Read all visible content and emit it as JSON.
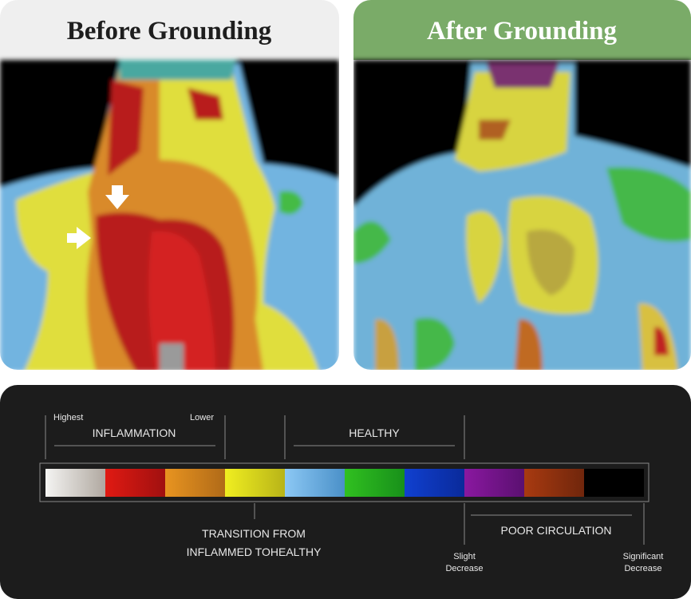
{
  "panels": [
    {
      "title": "Before Grounding"
    },
    {
      "title": "After Grounding"
    }
  ],
  "legend": {
    "highest": "Highest",
    "lower": "Lower",
    "inflammation": "INFLAMMATION",
    "healthy": "HEALTHY",
    "transition": [
      "TRANSITION FROM",
      "INFLAMMED TOHEALTHY"
    ],
    "poor_circulation": "POOR CIRCULATION",
    "slight_decrease": [
      "Slight",
      "Decrease"
    ],
    "significant_decrease": [
      "Significant",
      "Decrease"
    ]
  }
}
